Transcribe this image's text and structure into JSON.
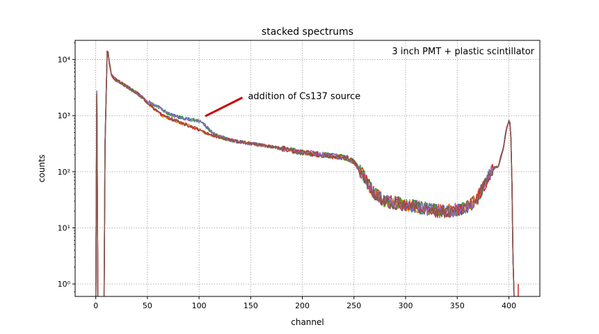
{
  "chart_data": {
    "type": "line",
    "title": "stacked spectrums",
    "xlabel": "channel",
    "ylabel": "counts",
    "xlim": [
      -20,
      430
    ],
    "ylim": [
      0.6,
      22000
    ],
    "yscale": "log",
    "grid": true,
    "legend": "none",
    "x_ticks": [
      0,
      50,
      100,
      150,
      200,
      250,
      300,
      350,
      400
    ],
    "y_ticks": [
      1,
      10,
      100,
      1000,
      10000
    ],
    "y_tick_labels": [
      "10⁰",
      "10¹",
      "10²",
      "10³",
      "10⁴"
    ],
    "annotations": [
      {
        "text": "3 inch PMT + plastic scintillator",
        "position": "top-right"
      },
      {
        "text": "addition of Cs137 source",
        "arrow_from": [
          142,
          2100
        ],
        "arrow_to": [
          106,
          980
        ],
        "arrow_color": "#cc0000"
      }
    ],
    "envelope": {
      "x": [
        0,
        0.5,
        1,
        1.5,
        2,
        3,
        5,
        7,
        8,
        8.5,
        9,
        9.5,
        10,
        11,
        12,
        13,
        14,
        15,
        17,
        20,
        25,
        30,
        35,
        40,
        45,
        50,
        55,
        60,
        65,
        70,
        75,
        80,
        85,
        90,
        95,
        100,
        105,
        110,
        115,
        120,
        125,
        130,
        140,
        150,
        160,
        170,
        180,
        190,
        200,
        210,
        220,
        230,
        240,
        245,
        250,
        255,
        260,
        265,
        270,
        275,
        280,
        290,
        300,
        310,
        320,
        330,
        340,
        350,
        360,
        365,
        370,
        375,
        380,
        385,
        390,
        395,
        397,
        399,
        400,
        401,
        402,
        403,
        404,
        405,
        406,
        407
      ],
      "y": [
        0.5,
        2600,
        2600,
        1000,
        0.5,
        0.5,
        0.5,
        0.5,
        0.5,
        1100,
        300,
        140,
        2000,
        13500,
        13000,
        9000,
        7000,
        5500,
        4800,
        4300,
        3800,
        3300,
        2900,
        2500,
        2100,
        1700,
        1400,
        1150,
        1000,
        920,
        850,
        780,
        720,
        660,
        610,
        560,
        510,
        470,
        440,
        410,
        390,
        370,
        340,
        320,
        300,
        280,
        260,
        240,
        220,
        210,
        200,
        190,
        180,
        170,
        150,
        110,
        80,
        55,
        40,
        35,
        30,
        28,
        26,
        24,
        22,
        20,
        20,
        21,
        24,
        28,
        35,
        55,
        80,
        115,
        130,
        280,
        500,
        700,
        780,
        720,
        400,
        60,
        3,
        0.6,
        0.5,
        0.5
      ]
    },
    "cs137_bump": {
      "x": [
        52,
        60,
        65,
        70,
        75,
        80,
        85,
        90,
        95,
        100,
        105,
        110,
        115,
        120,
        125
      ],
      "y": [
        1750,
        1450,
        1250,
        1100,
        1000,
        950,
        900,
        870,
        840,
        800,
        700,
        560,
        470,
        420,
        400
      ]
    },
    "series": [
      {
        "color": "#1f77b4"
      },
      {
        "color": "#ff7f0e"
      },
      {
        "color": "#2ca02c"
      },
      {
        "color": "#d62728"
      },
      {
        "color": "#9467bd"
      },
      {
        "color": "#8c564b"
      }
    ]
  }
}
